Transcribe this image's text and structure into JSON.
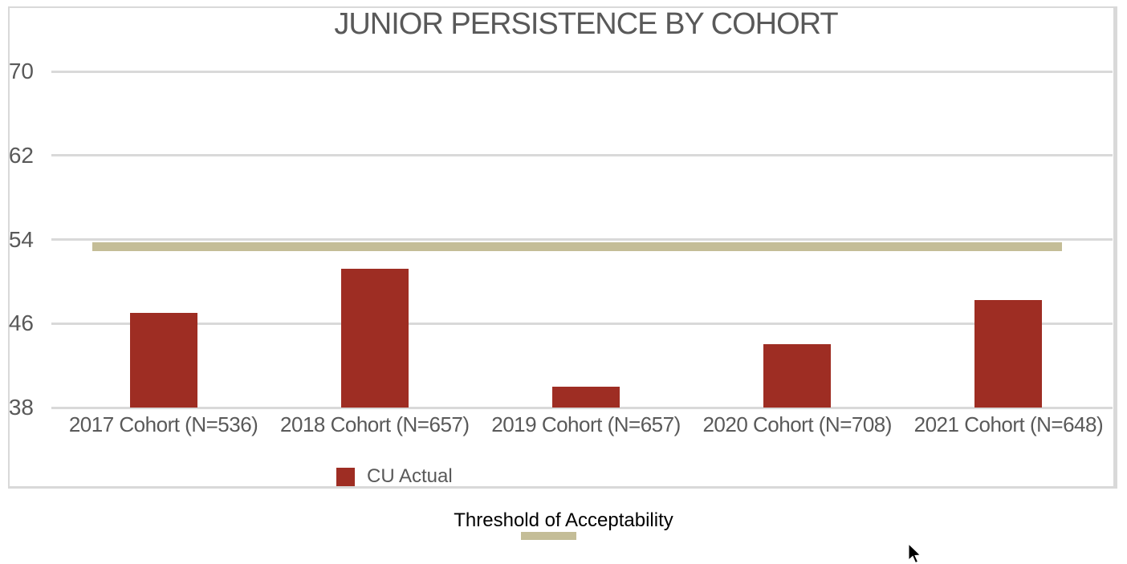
{
  "chart": {
    "title": "JUNIOR PERSISTENCE BY COHORT",
    "legend": {
      "cu_actual_label": "CU Actual",
      "threshold_label": "Threshold of Acceptability"
    },
    "colors": {
      "bar": "#9E2D23",
      "threshold": "#C4BD97",
      "gridline": "#D9D9D9",
      "frame_border": "#D9D9D9",
      "axis_text": "#595959",
      "title_text": "#595959",
      "legend_text": "#595959",
      "threshold_label_text": "#000000"
    },
    "icons": {
      "cursor": "mouse-pointer-icon",
      "cu_actual_swatch": "red-square-swatch",
      "threshold_swatch": "tan-bar-swatch"
    }
  },
  "chart_data": {
    "type": "bar",
    "title": "JUNIOR PERSISTENCE BY COHORT",
    "categories": [
      "2017 Cohort (N=536)",
      "2018 Cohort (N=657)",
      "2019 Cohort (N=657)",
      "2020 Cohort (N=708)",
      "2021 Cohort (N=648)"
    ],
    "series": [
      {
        "name": "CU Actual",
        "color": "#9E2D23",
        "values": [
          47,
          51.2,
          40,
          44,
          48.2
        ]
      }
    ],
    "threshold": {
      "name": "Threshold of Acceptability",
      "value": 53.3,
      "color": "#C4BD97"
    },
    "ylim": [
      38,
      70
    ],
    "yticks": [
      70,
      62,
      54,
      46,
      38
    ],
    "xlabel": "",
    "ylabel": "",
    "grid": true,
    "legend_position": "bottom"
  }
}
